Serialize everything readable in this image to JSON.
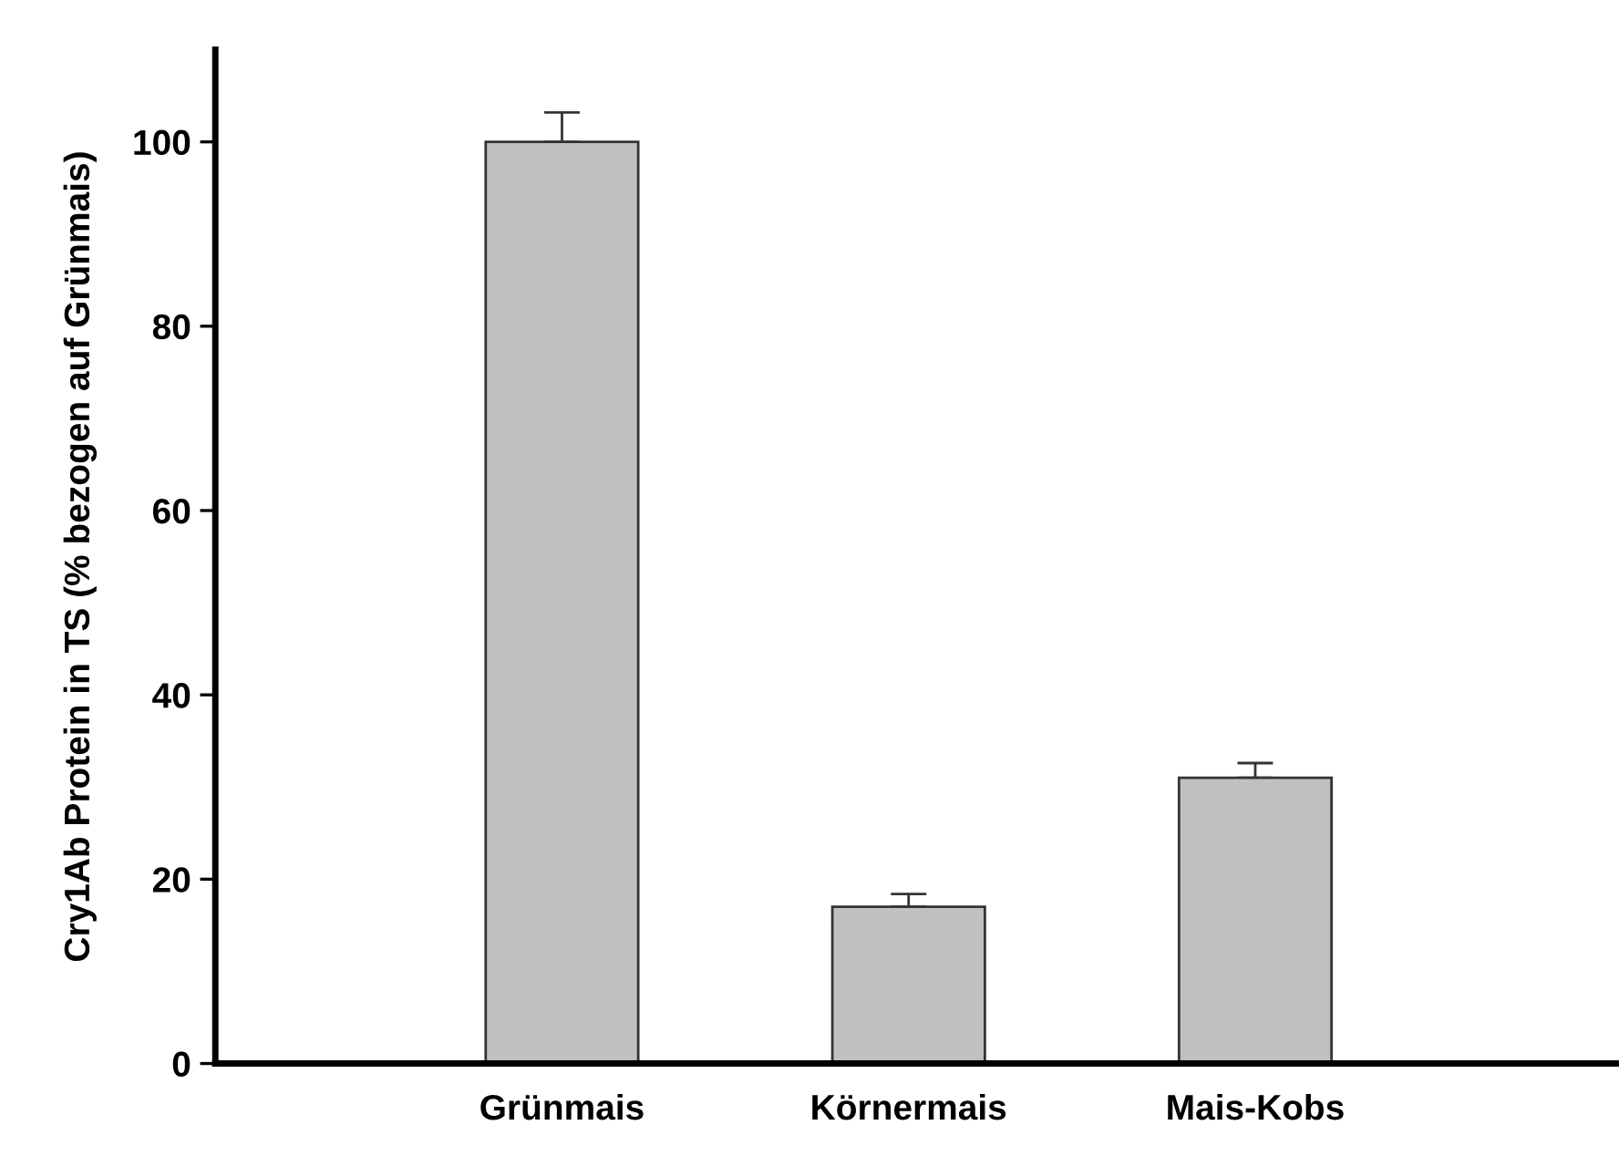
{
  "chart_data": {
    "type": "bar",
    "ylabel": "Cry1Ab Protein in TS (% bezogen auf Grünmais)",
    "categories": [
      "Grünmais",
      "Körnermais",
      "Mais-Kobs"
    ],
    "values": [
      100,
      17,
      31
    ],
    "color": "#c0c0c0",
    "errors": [
      [
        100,
        103.2
      ],
      [
        17,
        18.4
      ],
      [
        31,
        32.6
      ]
    ],
    "ylim": [
      0,
      110
    ],
    "yticks": [
      0,
      20,
      40,
      60,
      80,
      100
    ],
    "grid": false
  }
}
